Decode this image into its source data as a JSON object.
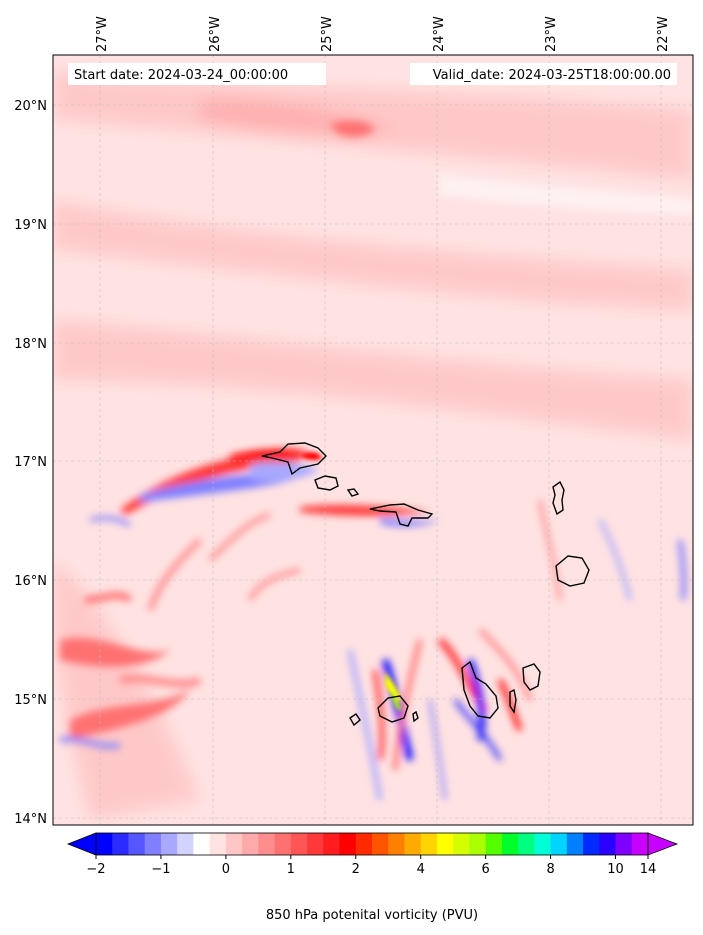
{
  "header": {
    "start_text": "Start date: 2024-03-24_00:00:00",
    "valid_text": "Valid_date: 2024-03-25T18:00:00.00"
  },
  "axes": {
    "lon_labels": [
      "27°W",
      "26°W",
      "25°W",
      "24°W",
      "23°W",
      "22°W"
    ],
    "lat_labels": [
      "20°N",
      "19°N",
      "18°N",
      "17°N",
      "16°N",
      "15°N",
      "14°N"
    ]
  },
  "colorbar": {
    "label": "850 hPa potenital vorticity (PVU)",
    "tick_labels": [
      "−2",
      "−1",
      "0",
      "1",
      "2",
      "4",
      "6",
      "8",
      "10",
      "14"
    ],
    "colors": [
      "#0000ff",
      "#2b2bff",
      "#5656ff",
      "#7f7fff",
      "#a8a8ff",
      "#d3d3ff",
      "#ffffff",
      "#ffe3e3",
      "#ffc6c6",
      "#ffaaaa",
      "#ff8d8d",
      "#ff7171",
      "#ff5555",
      "#ff3939",
      "#ff1c1c",
      "#ff0000",
      "#ff2a00",
      "#ff5500",
      "#ff8000",
      "#ffaa00",
      "#ffd400",
      "#ffff00",
      "#d4ff00",
      "#aaff00",
      "#55ff00",
      "#00ff2a",
      "#00ff80",
      "#00ffd4",
      "#00d4ff",
      "#0080ff",
      "#002aff",
      "#2a00ff",
      "#8000ff",
      "#c800ff"
    ]
  },
  "chart_data": {
    "type": "map",
    "field": "850 hPa potential vorticity",
    "units": "PVU",
    "lon_range": [
      -27.3,
      -21.6
    ],
    "lat_range": [
      13.95,
      20.45
    ],
    "colorbar_ticks": [
      -2,
      -1,
      0,
      1,
      2,
      4,
      6,
      8,
      10,
      14
    ],
    "extend": "both",
    "features": [
      {
        "kind": "island",
        "lon": -24.95,
        "lat": 17.02
      },
      {
        "kind": "island",
        "lon": -25.05,
        "lat": 16.83
      },
      {
        "kind": "island",
        "lon": -24.3,
        "lat": 16.6
      },
      {
        "kind": "island",
        "lon": -22.9,
        "lat": 16.7
      },
      {
        "kind": "island",
        "lon": -22.85,
        "lat": 16.1
      },
      {
        "kind": "island",
        "lon": -24.05,
        "lat": 15.05
      },
      {
        "kind": "island",
        "lon": -23.55,
        "lat": 15.1
      },
      {
        "kind": "island",
        "lon": -23.05,
        "lat": 15.2
      }
    ]
  }
}
